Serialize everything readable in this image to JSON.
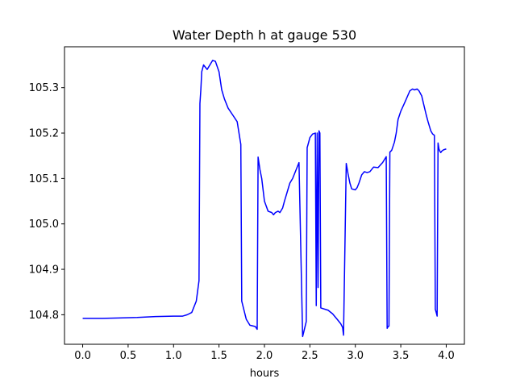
{
  "chart_data": {
    "type": "line",
    "title": "Water Depth h at gauge 530",
    "xlabel": "hours",
    "ylabel": "",
    "xlim": [
      -0.2,
      4.2
    ],
    "ylim": [
      104.735,
      105.39
    ],
    "xticks": [
      0.0,
      0.5,
      1.0,
      1.5,
      2.0,
      2.5,
      3.0,
      3.5,
      4.0
    ],
    "xtick_labels": [
      "0.0",
      "0.5",
      "1.0",
      "1.5",
      "2.0",
      "2.5",
      "3.0",
      "3.5",
      "4.0"
    ],
    "yticks": [
      104.8,
      104.9,
      105.0,
      105.1,
      105.2,
      105.3
    ],
    "ytick_labels": [
      "104.8",
      "104.9",
      "105.0",
      "105.1",
      "105.2",
      "105.3"
    ],
    "grid": false,
    "series": [
      {
        "color": "#0000ff",
        "x": [
          0.0,
          0.2,
          0.4,
          0.6,
          0.8,
          1.0,
          1.1,
          1.15,
          1.2,
          1.25,
          1.28,
          1.29,
          1.3,
          1.31,
          1.33,
          1.35,
          1.37,
          1.4,
          1.43,
          1.46,
          1.5,
          1.53,
          1.56,
          1.6,
          1.65,
          1.7,
          1.74,
          1.75,
          1.8,
          1.84,
          1.9,
          1.92,
          1.93,
          1.95,
          1.97,
          2.0,
          2.04,
          2.08,
          2.1,
          2.12,
          2.15,
          2.17,
          2.2,
          2.22,
          2.25,
          2.28,
          2.31,
          2.35,
          2.38,
          2.42,
          2.43,
          2.46,
          2.47,
          2.48,
          2.5,
          2.53,
          2.56,
          2.57,
          2.58,
          2.59,
          2.6,
          2.61,
          2.62,
          2.7,
          2.75,
          2.8,
          2.84,
          2.86,
          2.87,
          2.9,
          2.92,
          2.94,
          2.96,
          3.0,
          3.02,
          3.04,
          3.07,
          3.1,
          3.13,
          3.16,
          3.2,
          3.25,
          3.3,
          3.34,
          3.35,
          3.36,
          3.37,
          3.38,
          3.39,
          3.4,
          3.43,
          3.45,
          3.47,
          3.5,
          3.55,
          3.6,
          3.63,
          3.65,
          3.68,
          3.7,
          3.73,
          3.75,
          3.78,
          3.8,
          3.83,
          3.85,
          3.87,
          3.88,
          3.89,
          3.9,
          3.91,
          3.92,
          3.93,
          3.94,
          3.95,
          3.97,
          4.0
        ],
        "y": [
          104.792,
          104.792,
          104.793,
          104.794,
          104.796,
          104.797,
          104.797,
          104.8,
          104.805,
          104.83,
          104.875,
          105.265,
          105.295,
          105.335,
          105.35,
          105.345,
          105.34,
          105.35,
          105.36,
          105.358,
          105.335,
          105.295,
          105.275,
          105.255,
          105.24,
          105.225,
          105.175,
          104.83,
          104.79,
          104.777,
          104.774,
          104.768,
          105.147,
          105.12,
          105.1,
          105.05,
          105.028,
          105.025,
          105.02,
          105.025,
          105.028,
          105.025,
          105.035,
          105.05,
          105.07,
          105.09,
          105.1,
          105.12,
          105.135,
          104.752,
          104.76,
          104.785,
          105.168,
          105.175,
          105.19,
          105.198,
          105.2,
          104.82,
          105.2,
          104.86,
          105.205,
          105.2,
          104.815,
          104.81,
          104.802,
          104.79,
          104.78,
          104.772,
          104.755,
          105.133,
          105.11,
          105.09,
          105.077,
          105.075,
          105.08,
          105.09,
          105.108,
          105.115,
          105.113,
          105.115,
          105.125,
          105.124,
          105.135,
          105.148,
          104.77,
          104.774,
          104.775,
          105.158,
          105.16,
          105.162,
          105.18,
          105.2,
          105.23,
          105.248,
          105.27,
          105.293,
          105.297,
          105.295,
          105.297,
          105.293,
          105.282,
          105.265,
          105.24,
          105.225,
          105.205,
          105.198,
          105.195,
          104.812,
          104.805,
          104.797,
          105.178,
          105.165,
          105.16,
          105.157,
          105.16,
          105.163,
          105.165
        ]
      }
    ]
  }
}
